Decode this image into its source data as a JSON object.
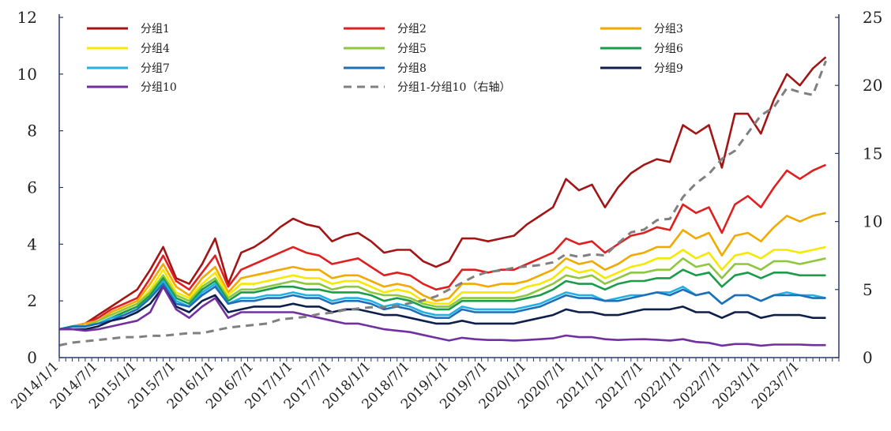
{
  "chart_data": {
    "type": "line",
    "x": [
      "2014/1/1",
      "2014/3/1",
      "2014/5/1",
      "2014/7/1",
      "2014/9/1",
      "2014/11/1",
      "2015/1/1",
      "2015/3/1",
      "2015/5/1",
      "2015/7/1",
      "2015/9/1",
      "2015/11/1",
      "2016/1/1",
      "2016/3/1",
      "2016/5/1",
      "2016/7/1",
      "2016/9/1",
      "2016/11/1",
      "2017/1/1",
      "2017/3/1",
      "2017/5/1",
      "2017/7/1",
      "2017/9/1",
      "2017/11/1",
      "2018/1/1",
      "2018/3/1",
      "2018/5/1",
      "2018/7/1",
      "2018/9/1",
      "2018/11/1",
      "2019/1/1",
      "2019/3/1",
      "2019/5/1",
      "2019/7/1",
      "2019/9/1",
      "2019/11/1",
      "2020/1/1",
      "2020/3/1",
      "2020/5/1",
      "2020/7/1",
      "2020/9/1",
      "2020/11/1",
      "2021/1/1",
      "2021/3/1",
      "2021/5/1",
      "2021/7/1",
      "2021/9/1",
      "2021/11/1",
      "2022/1/1",
      "2022/3/1",
      "2022/5/1",
      "2022/7/1",
      "2022/9/1",
      "2022/11/1",
      "2023/1/1",
      "2023/3/1",
      "2023/5/1",
      "2023/7/1",
      "2023/9/1",
      "2023/11/1"
    ],
    "xtick_labels": [
      "2014/1/1",
      "2014/7/1",
      "2015/1/1",
      "2015/7/1",
      "2016/1/1",
      "2016/7/1",
      "2017/1/1",
      "2017/7/1",
      "2018/1/1",
      "2018/7/1",
      "2019/1/1",
      "2019/7/1",
      "2020/1/1",
      "2020/7/1",
      "2021/1/1",
      "2021/7/1",
      "2022/1/1",
      "2022/7/1",
      "2023/1/1",
      "2023/7/1"
    ],
    "ylim": [
      0,
      12
    ],
    "yticks": [
      0,
      2,
      4,
      6,
      8,
      10,
      12
    ],
    "y2lim": [
      0,
      25
    ],
    "y2ticks": [
      0,
      5,
      10,
      15,
      20,
      25
    ],
    "grid": false,
    "legend_position": "top",
    "series": [
      {
        "name": "分组1",
        "color": "#a31515",
        "axis": "left",
        "values": [
          1.0,
          1.1,
          1.2,
          1.5,
          1.8,
          2.1,
          2.4,
          3.1,
          3.9,
          2.8,
          2.6,
          3.3,
          4.2,
          2.6,
          3.7,
          3.9,
          4.2,
          4.6,
          4.9,
          4.7,
          4.6,
          4.1,
          4.3,
          4.4,
          4.1,
          3.7,
          3.8,
          3.8,
          3.4,
          3.2,
          3.4,
          4.2,
          4.2,
          4.1,
          4.2,
          4.3,
          4.7,
          5.0,
          5.3,
          6.3,
          5.9,
          6.1,
          5.3,
          6.0,
          6.5,
          6.8,
          7.0,
          6.9,
          8.2,
          7.9,
          8.2,
          6.7,
          8.6,
          8.6,
          7.9,
          9.1,
          10.0,
          9.6,
          10.2,
          10.6
        ]
      },
      {
        "name": "分组2",
        "color": "#e02020",
        "axis": "left",
        "values": [
          1.0,
          1.1,
          1.2,
          1.4,
          1.7,
          1.9,
          2.1,
          2.8,
          3.6,
          2.7,
          2.4,
          3.0,
          3.6,
          2.5,
          3.1,
          3.3,
          3.5,
          3.7,
          3.9,
          3.7,
          3.6,
          3.3,
          3.4,
          3.5,
          3.2,
          2.9,
          3.0,
          2.9,
          2.6,
          2.4,
          2.5,
          3.1,
          3.1,
          3.0,
          3.1,
          3.1,
          3.3,
          3.5,
          3.7,
          4.2,
          4.0,
          4.1,
          3.7,
          4.0,
          4.3,
          4.4,
          4.6,
          4.5,
          5.4,
          5.1,
          5.3,
          4.4,
          5.4,
          5.7,
          5.3,
          6.0,
          6.6,
          6.3,
          6.6,
          6.8
        ]
      },
      {
        "name": "分组3",
        "color": "#f2a900",
        "axis": "left",
        "values": [
          1.0,
          1.1,
          1.2,
          1.3,
          1.6,
          1.8,
          2.0,
          2.6,
          3.3,
          2.5,
          2.2,
          2.8,
          3.2,
          2.3,
          2.8,
          2.9,
          3.0,
          3.1,
          3.2,
          3.1,
          3.1,
          2.8,
          2.9,
          2.9,
          2.7,
          2.5,
          2.6,
          2.5,
          2.2,
          2.0,
          2.1,
          2.6,
          2.6,
          2.5,
          2.6,
          2.6,
          2.7,
          2.9,
          3.1,
          3.5,
          3.3,
          3.4,
          3.1,
          3.3,
          3.6,
          3.7,
          3.9,
          3.9,
          4.5,
          4.2,
          4.4,
          3.6,
          4.3,
          4.4,
          4.1,
          4.6,
          5.0,
          4.8,
          5.0,
          5.1
        ]
      },
      {
        "name": "分组4",
        "color": "#f5e900",
        "axis": "left",
        "values": [
          1.0,
          1.1,
          1.1,
          1.3,
          1.5,
          1.7,
          1.9,
          2.4,
          3.1,
          2.3,
          2.1,
          2.6,
          3.0,
          2.2,
          2.6,
          2.6,
          2.7,
          2.8,
          2.9,
          2.8,
          2.8,
          2.6,
          2.7,
          2.7,
          2.5,
          2.3,
          2.4,
          2.3,
          2.0,
          1.9,
          1.9,
          2.3,
          2.3,
          2.3,
          2.3,
          2.3,
          2.5,
          2.6,
          2.8,
          3.2,
          3.0,
          3.1,
          2.8,
          3.0,
          3.2,
          3.3,
          3.5,
          3.5,
          3.8,
          3.5,
          3.7,
          3.1,
          3.6,
          3.7,
          3.5,
          3.8,
          3.8,
          3.7,
          3.8,
          3.9
        ]
      },
      {
        "name": "分组5",
        "color": "#8dc63f",
        "axis": "left",
        "values": [
          1.0,
          1.1,
          1.1,
          1.3,
          1.5,
          1.7,
          1.9,
          2.3,
          2.9,
          2.2,
          2.0,
          2.5,
          2.8,
          2.1,
          2.4,
          2.4,
          2.5,
          2.6,
          2.7,
          2.6,
          2.6,
          2.4,
          2.5,
          2.5,
          2.3,
          2.2,
          2.2,
          2.1,
          1.9,
          1.8,
          1.8,
          2.1,
          2.1,
          2.1,
          2.1,
          2.1,
          2.2,
          2.4,
          2.6,
          2.9,
          2.8,
          2.9,
          2.6,
          2.8,
          3.0,
          3.0,
          3.1,
          3.1,
          3.5,
          3.2,
          3.3,
          2.8,
          3.3,
          3.3,
          3.1,
          3.4,
          3.4,
          3.3,
          3.4,
          3.5
        ]
      },
      {
        "name": "分组6",
        "color": "#1a9c4a",
        "axis": "left",
        "values": [
          1.0,
          1.1,
          1.1,
          1.2,
          1.4,
          1.6,
          1.8,
          2.2,
          2.8,
          2.1,
          1.9,
          2.4,
          2.7,
          2.0,
          2.3,
          2.3,
          2.4,
          2.5,
          2.5,
          2.4,
          2.4,
          2.3,
          2.3,
          2.3,
          2.2,
          2.0,
          2.1,
          2.0,
          1.8,
          1.7,
          1.7,
          2.0,
          2.0,
          2.0,
          2.0,
          2.0,
          2.1,
          2.2,
          2.4,
          2.7,
          2.6,
          2.6,
          2.4,
          2.6,
          2.7,
          2.7,
          2.8,
          2.8,
          3.1,
          2.9,
          3.0,
          2.5,
          2.9,
          3.0,
          2.8,
          3.0,
          3.0,
          2.9,
          2.9,
          2.9
        ]
      },
      {
        "name": "分组7",
        "color": "#22b0e6",
        "axis": "left",
        "values": [
          1.0,
          1.1,
          1.1,
          1.2,
          1.4,
          1.5,
          1.7,
          2.1,
          2.7,
          2.0,
          1.8,
          2.3,
          2.6,
          1.9,
          2.1,
          2.1,
          2.2,
          2.2,
          2.3,
          2.2,
          2.2,
          2.0,
          2.1,
          2.1,
          2.0,
          1.8,
          1.9,
          1.8,
          1.6,
          1.5,
          1.5,
          1.8,
          1.7,
          1.7,
          1.7,
          1.7,
          1.8,
          1.9,
          2.1,
          2.3,
          2.2,
          2.2,
          2.0,
          2.1,
          2.2,
          2.2,
          2.3,
          2.3,
          2.5,
          2.2,
          2.3,
          1.9,
          2.2,
          2.2,
          2.0,
          2.2,
          2.3,
          2.2,
          2.2,
          2.1
        ]
      },
      {
        "name": "分组8",
        "color": "#1f6fb8",
        "axis": "left",
        "values": [
          1.0,
          1.1,
          1.1,
          1.2,
          1.3,
          1.5,
          1.7,
          2.1,
          2.6,
          1.9,
          1.8,
          2.2,
          2.5,
          1.9,
          2.0,
          2.0,
          2.1,
          2.1,
          2.2,
          2.1,
          2.1,
          1.9,
          2.0,
          2.0,
          1.9,
          1.7,
          1.8,
          1.7,
          1.5,
          1.4,
          1.4,
          1.7,
          1.6,
          1.6,
          1.6,
          1.6,
          1.7,
          1.8,
          2.0,
          2.2,
          2.1,
          2.1,
          2.0,
          2.0,
          2.1,
          2.2,
          2.3,
          2.2,
          2.4,
          2.2,
          2.3,
          1.9,
          2.2,
          2.2,
          2.0,
          2.2,
          2.2,
          2.2,
          2.1,
          2.1
        ]
      },
      {
        "name": "分组9",
        "color": "#0d1f4a",
        "axis": "left",
        "values": [
          1.0,
          1.0,
          1.0,
          1.1,
          1.3,
          1.4,
          1.6,
          1.9,
          2.5,
          1.8,
          1.6,
          2.0,
          2.2,
          1.6,
          1.7,
          1.8,
          1.8,
          1.8,
          1.9,
          1.8,
          1.8,
          1.6,
          1.7,
          1.7,
          1.6,
          1.5,
          1.5,
          1.4,
          1.3,
          1.2,
          1.2,
          1.3,
          1.2,
          1.2,
          1.2,
          1.2,
          1.3,
          1.4,
          1.5,
          1.7,
          1.6,
          1.6,
          1.5,
          1.5,
          1.6,
          1.7,
          1.7,
          1.7,
          1.8,
          1.6,
          1.6,
          1.4,
          1.6,
          1.6,
          1.4,
          1.5,
          1.5,
          1.5,
          1.4,
          1.4
        ]
      },
      {
        "name": "分组10",
        "color": "#7030a0",
        "axis": "left",
        "values": [
          1.0,
          1.0,
          0.95,
          1.0,
          1.1,
          1.2,
          1.3,
          1.6,
          2.5,
          1.7,
          1.4,
          1.8,
          2.1,
          1.4,
          1.6,
          1.6,
          1.6,
          1.6,
          1.6,
          1.5,
          1.4,
          1.3,
          1.2,
          1.2,
          1.1,
          1.0,
          0.95,
          0.9,
          0.8,
          0.7,
          0.6,
          0.7,
          0.65,
          0.62,
          0.62,
          0.6,
          0.62,
          0.65,
          0.68,
          0.78,
          0.72,
          0.72,
          0.65,
          0.62,
          0.64,
          0.65,
          0.63,
          0.6,
          0.65,
          0.55,
          0.52,
          0.42,
          0.48,
          0.48,
          0.42,
          0.46,
          0.46,
          0.46,
          0.44,
          0.44
        ]
      },
      {
        "name": "分组1-分组10（右轴）",
        "color": "#808080",
        "axis": "right",
        "dashed": true,
        "values": [
          0.9,
          1.1,
          1.2,
          1.3,
          1.4,
          1.5,
          1.5,
          1.6,
          1.6,
          1.7,
          1.8,
          1.8,
          2.0,
          2.2,
          2.3,
          2.4,
          2.5,
          2.8,
          2.9,
          3.0,
          3.2,
          3.3,
          3.5,
          3.6,
          3.7,
          3.7,
          3.8,
          4.0,
          4.2,
          4.5,
          5.0,
          5.5,
          6.0,
          6.3,
          6.4,
          6.6,
          6.7,
          6.8,
          7.0,
          7.6,
          7.4,
          7.6,
          7.5,
          8.4,
          9.2,
          9.4,
          10.1,
          10.2,
          11.8,
          12.8,
          13.5,
          14.6,
          15.2,
          16.5,
          17.8,
          18.4,
          19.8,
          19.5,
          19.3,
          21.8
        ]
      }
    ]
  }
}
